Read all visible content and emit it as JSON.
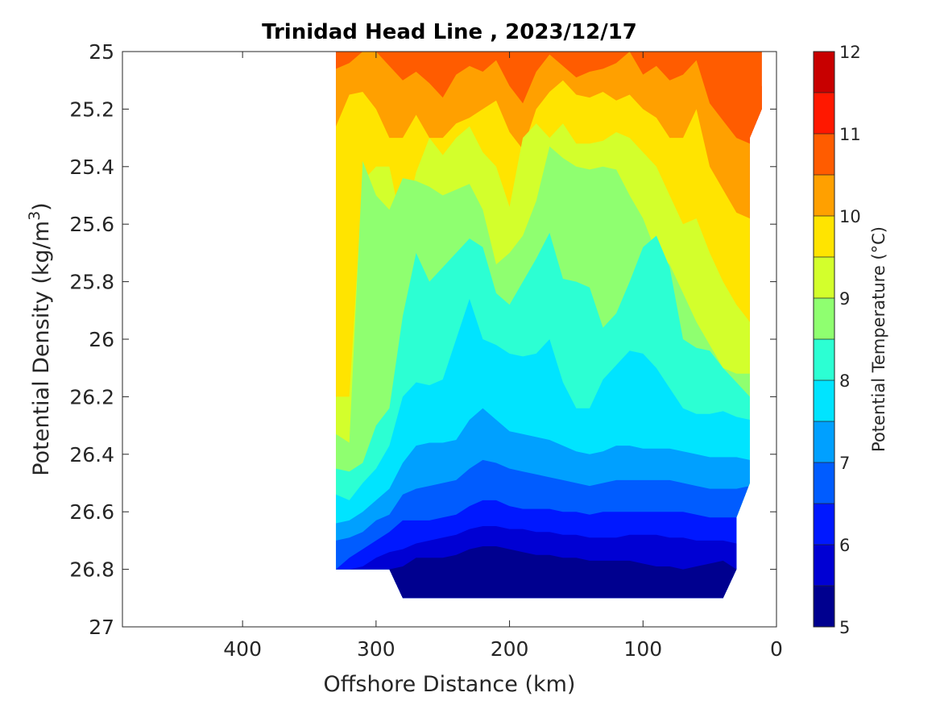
{
  "chart_data": {
    "type": "heatmap",
    "title": "Trinidad Head Line , 2023/12/17",
    "xlabel": "Offshore Distance (km)",
    "ylabel": "Potential Density (kg/m",
    "ylabel_sup": "3",
    "ylabel_close": ")",
    "colorbar_label": "Potential Temperature (°C)",
    "xlim": [
      490,
      0
    ],
    "ylim": [
      25,
      27
    ],
    "x_ticks": [
      400,
      300,
      200,
      100,
      0
    ],
    "x_tick_labels": [
      "400",
      "300",
      "200",
      "100",
      "0"
    ],
    "y_ticks": [
      25,
      25.2,
      25.4,
      25.6,
      25.8,
      26,
      26.2,
      26.4,
      26.6,
      26.8,
      27
    ],
    "y_tick_labels": [
      "25",
      "25.2",
      "25.4",
      "25.6",
      "25.8",
      "26",
      "26.2",
      "26.4",
      "26.6",
      "26.8",
      "27"
    ],
    "colorbar_range": [
      5,
      12
    ],
    "colorbar_ticks": [
      5,
      6,
      7,
      8,
      9,
      10,
      11,
      12
    ],
    "colorbar_tick_labels": [
      "5",
      "6",
      "7",
      "8",
      "9",
      "10",
      "11",
      "12"
    ],
    "levels": [
      5,
      5.5,
      6,
      6.5,
      7,
      7.5,
      8,
      8.5,
      9,
      9.5,
      10,
      10.5,
      11,
      11.5,
      12
    ],
    "level_colors": [
      "#00008f",
      "#0000d3",
      "#0018ff",
      "#005cff",
      "#00a0ff",
      "#00e4ff",
      "#2cffd3",
      "#8fff70",
      "#d3ff2c",
      "#ffe400",
      "#ffa000",
      "#ff5c00",
      "#ff1800",
      "#c80000"
    ],
    "domain": {
      "x_min": 11,
      "x_max": 330,
      "y_top": 25,
      "y_bottom": 26.9,
      "outline": [
        [
          330,
          25
        ],
        [
          11,
          25
        ],
        [
          11,
          25.2
        ],
        [
          20,
          25.3
        ],
        [
          20,
          26.5
        ],
        [
          30,
          26.62
        ],
        [
          30,
          26.8
        ],
        [
          40,
          26.9
        ],
        [
          280,
          26.9
        ],
        [
          290,
          26.8
        ],
        [
          330,
          26.8
        ]
      ]
    },
    "isotherm_depths": {
      "x": [
        330,
        320,
        310,
        300,
        290,
        280,
        270,
        260,
        250,
        240,
        230,
        220,
        210,
        200,
        190,
        180,
        170,
        160,
        150,
        140,
        130,
        120,
        110,
        100,
        90,
        80,
        70,
        60,
        50,
        40,
        30,
        20,
        11
      ],
      "levels": [
        11.5,
        11,
        10.5,
        10,
        9.5,
        9,
        8.5,
        8,
        7.5,
        7,
        6.5,
        6,
        5.5
      ],
      "depths": [
        [
          25.0,
          25.0,
          25.0,
          25.0,
          25.0,
          25.0,
          25.0,
          25.0,
          25.0,
          25.0,
          25.0,
          25.0,
          25.0,
          25.0,
          25.03,
          25.0,
          25.0,
          25.0,
          25.0,
          25.0,
          25.0,
          25.0,
          25.0,
          25.02,
          25.01,
          25.03,
          25.05,
          25.03,
          25.02,
          25.06,
          25.09,
          25.12,
          25.12
        ],
        [
          25.0,
          25.0,
          25.0,
          25.0,
          25.0,
          25.0,
          25.0,
          25.0,
          25.0,
          25.0,
          25.0,
          25.0,
          25.0,
          25.0,
          25.0,
          25.0,
          25.0,
          25.0,
          25.0,
          25.0,
          25.0,
          25.0,
          25.0,
          25.0,
          25.0,
          25.0,
          25.0,
          25.0,
          25.0,
          25.0,
          25.0,
          25.0,
          25.0
        ],
        [
          25.06,
          25.04,
          25.0,
          25.0,
          25.05,
          25.1,
          25.07,
          25.11,
          25.16,
          25.08,
          25.05,
          25.07,
          25.03,
          25.12,
          25.18,
          25.07,
          25.01,
          25.05,
          25.09,
          25.07,
          25.06,
          25.04,
          25.0,
          25.08,
          25.05,
          25.1,
          25.08,
          25.03,
          25.18,
          25.24,
          25.3,
          25.32,
          25.32
        ],
        [
          25.26,
          25.15,
          25.14,
          25.2,
          25.3,
          25.3,
          25.22,
          25.3,
          25.3,
          25.25,
          25.23,
          25.2,
          25.17,
          25.28,
          25.34,
          25.2,
          25.14,
          25.1,
          25.15,
          25.16,
          25.14,
          25.17,
          25.15,
          25.2,
          25.23,
          25.3,
          25.3,
          25.2,
          25.4,
          25.48,
          25.56,
          25.58,
          25.58
        ],
        [
          26.2,
          26.2,
          25.45,
          25.4,
          25.4,
          25.62,
          25.42,
          25.3,
          25.36,
          25.3,
          25.26,
          25.35,
          25.4,
          25.54,
          25.3,
          25.25,
          25.3,
          25.25,
          25.32,
          25.32,
          25.31,
          25.28,
          25.3,
          25.35,
          25.4,
          25.5,
          25.6,
          25.58,
          25.7,
          25.8,
          25.88,
          25.94,
          25.94
        ],
        [
          26.33,
          26.36,
          25.38,
          25.5,
          25.55,
          25.44,
          25.45,
          25.47,
          25.5,
          25.48,
          25.46,
          25.55,
          25.74,
          25.7,
          25.64,
          25.52,
          25.33,
          25.37,
          25.4,
          25.41,
          25.4,
          25.41,
          25.5,
          25.58,
          25.7,
          25.74,
          25.84,
          25.94,
          26.02,
          26.1,
          26.12,
          26.12,
          26.12
        ],
        [
          26.45,
          26.46,
          26.43,
          26.3,
          26.24,
          25.92,
          25.7,
          25.8,
          25.75,
          25.7,
          25.65,
          25.68,
          25.84,
          25.88,
          25.8,
          25.72,
          25.63,
          25.79,
          25.8,
          25.82,
          25.96,
          25.91,
          25.8,
          25.68,
          25.64,
          25.75,
          26.0,
          26.03,
          26.04,
          26.1,
          26.15,
          26.2,
          26.2
        ],
        [
          26.54,
          26.56,
          26.5,
          26.45,
          26.37,
          26.2,
          26.15,
          26.16,
          26.14,
          26.0,
          25.86,
          26.0,
          26.02,
          26.05,
          26.06,
          26.05,
          26.0,
          26.15,
          26.24,
          26.24,
          26.14,
          26.09,
          26.04,
          26.05,
          26.1,
          26.17,
          26.24,
          26.26,
          26.26,
          26.25,
          26.27,
          26.28,
          26.28
        ],
        [
          26.64,
          26.63,
          26.6,
          26.56,
          26.52,
          26.43,
          26.37,
          26.36,
          26.36,
          26.35,
          26.28,
          26.24,
          26.28,
          26.32,
          26.33,
          26.34,
          26.35,
          26.37,
          26.39,
          26.4,
          26.39,
          26.37,
          26.37,
          26.38,
          26.38,
          26.38,
          26.39,
          26.4,
          26.41,
          26.41,
          26.41,
          26.42,
          26.42
        ],
        [
          26.7,
          26.69,
          26.67,
          26.63,
          26.61,
          26.54,
          26.52,
          26.51,
          26.5,
          26.49,
          26.45,
          26.42,
          26.43,
          26.45,
          26.46,
          26.47,
          26.48,
          26.49,
          26.5,
          26.51,
          26.5,
          26.49,
          26.49,
          26.49,
          26.49,
          26.49,
          26.5,
          26.51,
          26.52,
          26.52,
          26.52,
          26.51,
          26.51
        ],
        [
          26.8,
          26.76,
          26.73,
          26.7,
          26.67,
          26.63,
          26.63,
          26.63,
          26.62,
          26.61,
          26.58,
          26.56,
          26.56,
          26.58,
          26.59,
          26.59,
          26.59,
          26.6,
          26.6,
          26.61,
          26.6,
          26.6,
          26.6,
          26.6,
          26.6,
          26.6,
          26.6,
          26.61,
          26.62,
          26.62,
          26.62,
          26.62,
          26.62
        ],
        [
          26.8,
          26.8,
          26.79,
          26.76,
          26.74,
          26.73,
          26.71,
          26.7,
          26.69,
          26.68,
          26.66,
          26.65,
          26.65,
          26.66,
          26.66,
          26.67,
          26.67,
          26.68,
          26.68,
          26.69,
          26.69,
          26.69,
          26.68,
          26.68,
          26.68,
          26.69,
          26.69,
          26.7,
          26.7,
          26.7,
          26.71,
          26.71,
          26.71
        ],
        [
          26.8,
          26.8,
          26.8,
          26.8,
          26.8,
          26.79,
          26.76,
          26.76,
          26.76,
          26.75,
          26.73,
          26.72,
          26.72,
          26.73,
          26.74,
          26.75,
          26.75,
          26.76,
          26.76,
          26.77,
          26.77,
          26.77,
          26.77,
          26.78,
          26.79,
          26.79,
          26.8,
          26.79,
          26.78,
          26.77,
          26.8,
          26.8,
          26.8
        ]
      ]
    }
  }
}
